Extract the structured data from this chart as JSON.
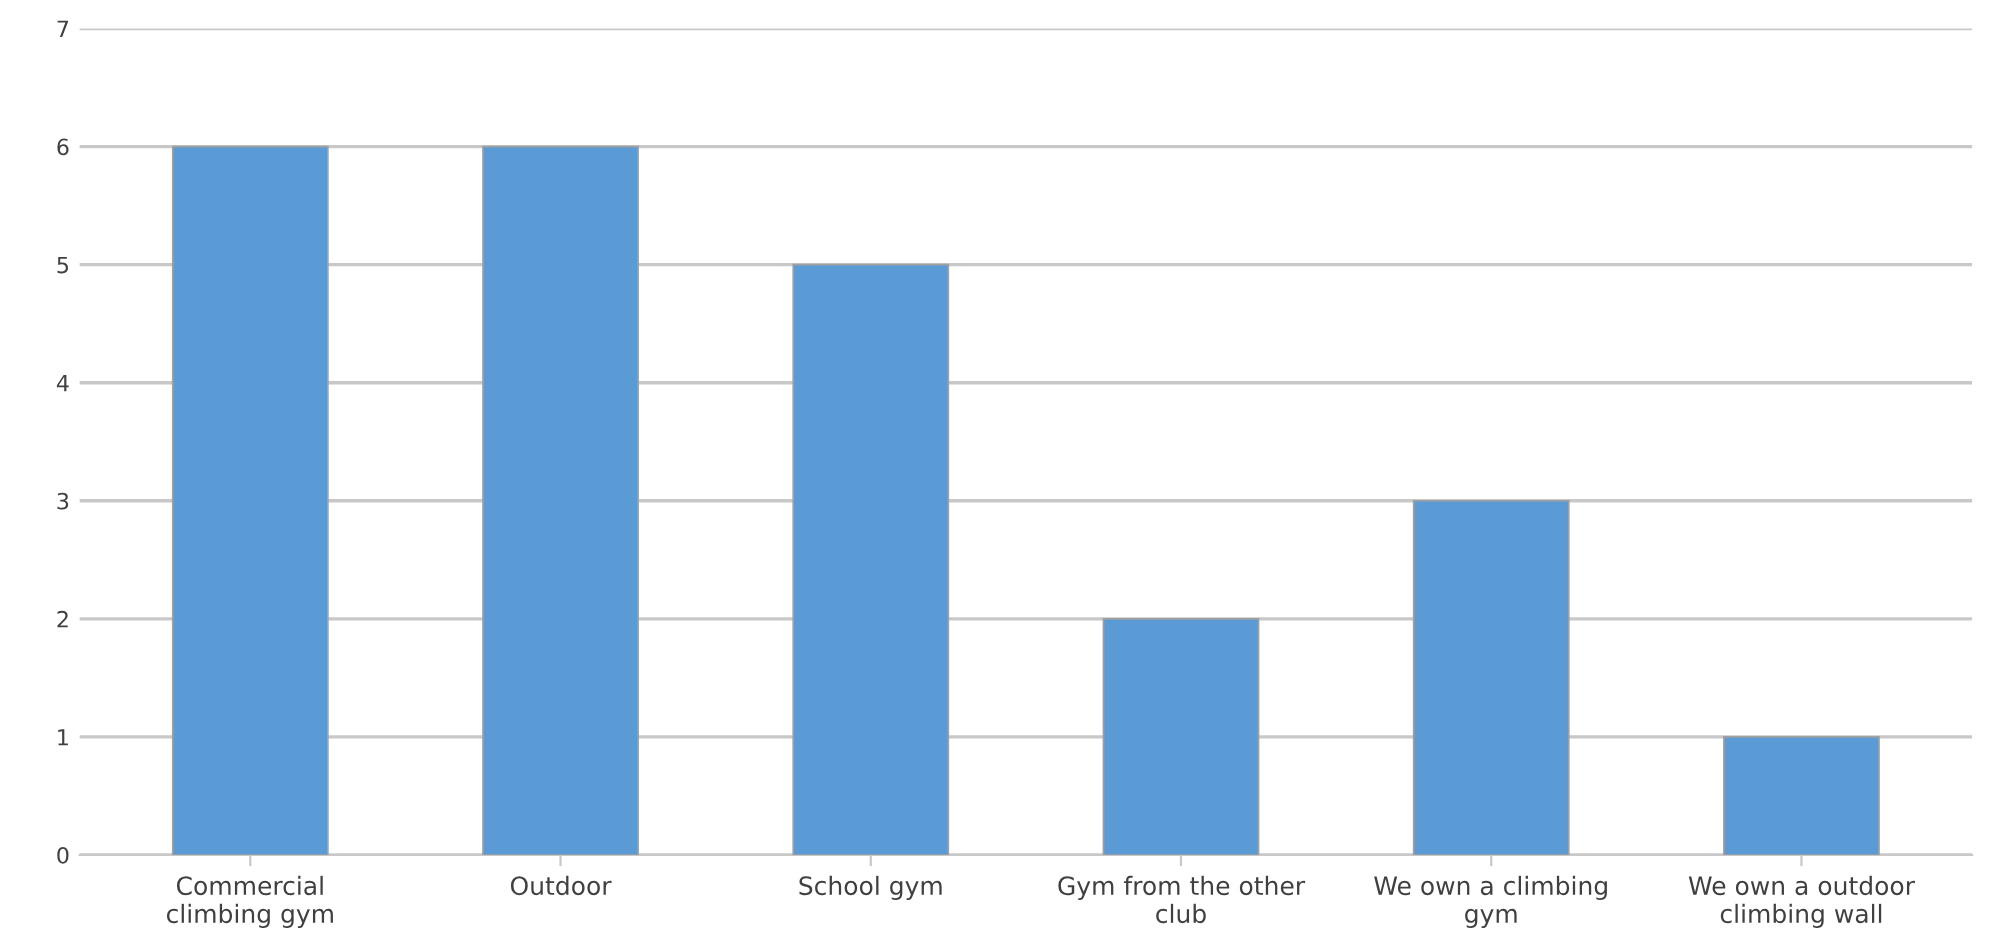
{
  "chart_data": {
    "type": "bar",
    "categories": [
      "Commercial climbing gym",
      "Outdoor",
      "School gym",
      "Gym from the other club",
      "We own a climbing gym",
      "We own a outdoor climbing wall"
    ],
    "values": [
      6,
      6,
      5,
      2,
      3,
      1
    ],
    "color": "#5b9bd5",
    "ylim": [
      0,
      7
    ],
    "yticks": [
      0,
      1,
      2,
      3,
      4,
      5,
      6,
      7
    ],
    "grid": "y",
    "legend": false
  }
}
